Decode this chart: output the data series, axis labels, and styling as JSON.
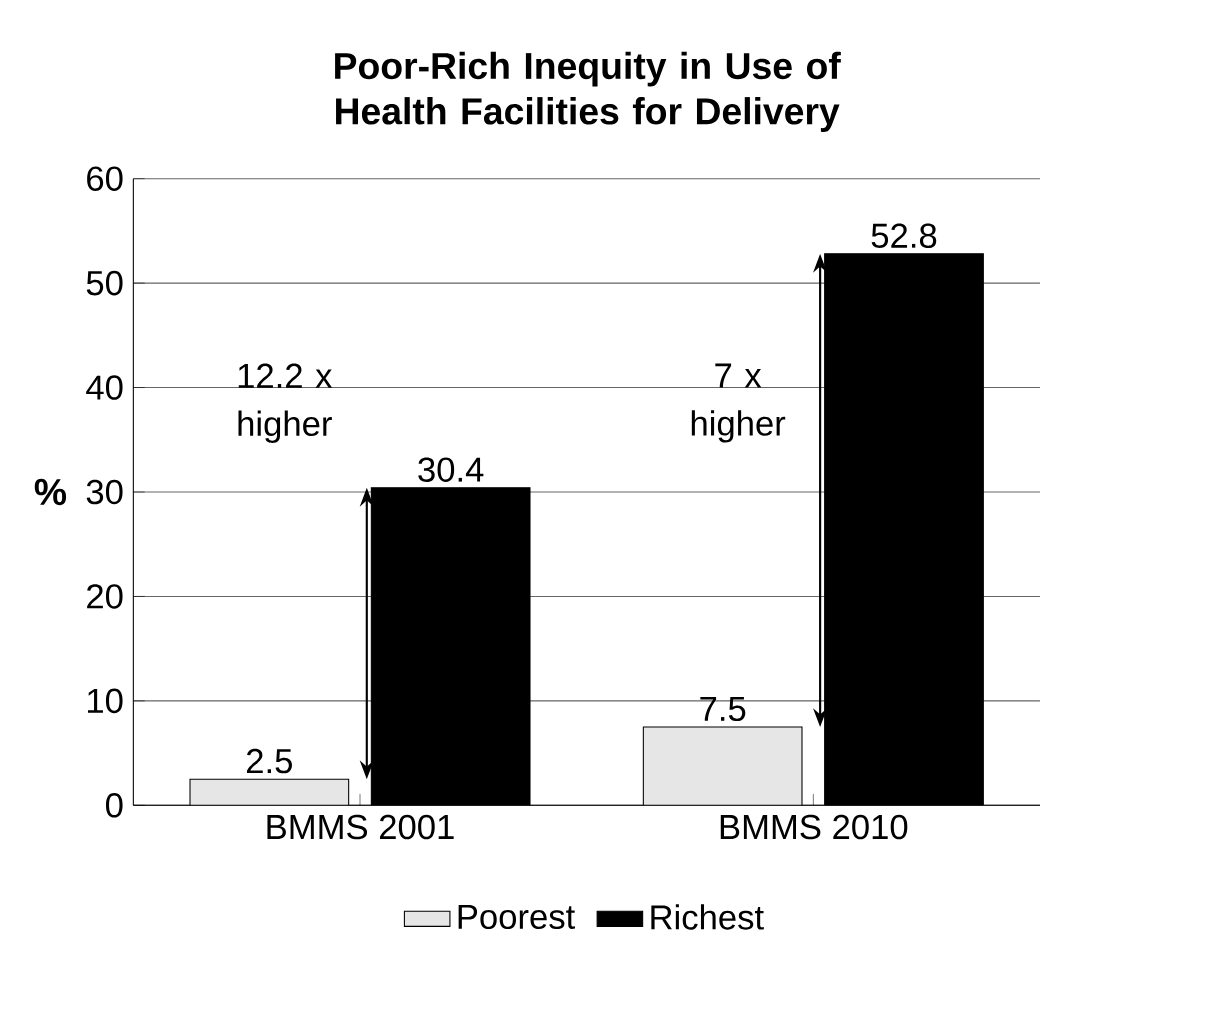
{
  "chart_data": {
    "type": "bar",
    "title": "Poor-Rich Inequity in Use of Health Facilities for Delivery",
    "ylabel": "%",
    "categories": [
      "BMMS 2001",
      "BMMS 2010"
    ],
    "series": [
      {
        "name": "Poorest",
        "color": "#e6e6e6",
        "values": [
          2.5,
          7.5
        ]
      },
      {
        "name": "Richest",
        "color": "#000000",
        "values": [
          30.4,
          52.8
        ]
      }
    ],
    "ylim": [
      0,
      60
    ],
    "yticks": [
      0,
      10,
      20,
      30,
      40,
      50,
      60
    ],
    "grid": "y",
    "legend": "bottom",
    "data_labels": true,
    "annotations": [
      "12.2 x higher",
      "7 x higher"
    ]
  }
}
